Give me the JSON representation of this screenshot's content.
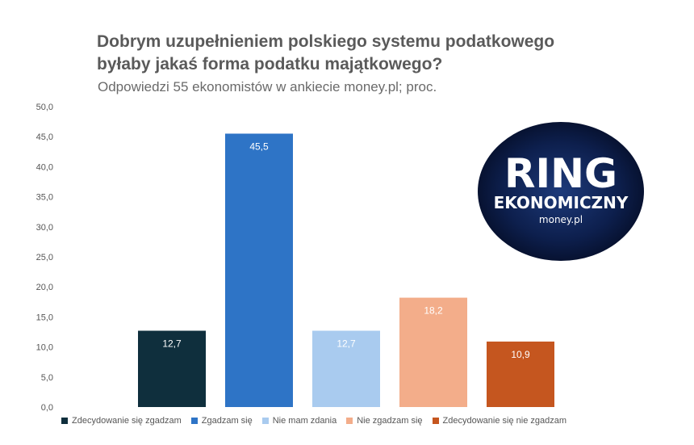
{
  "chart_data": {
    "type": "bar",
    "title_lines": [
      "Dobrym uzupełnieniem polskiego systemu podatkowego",
      "byłaby jakaś forma podatku majątkowego?"
    ],
    "subtitle": "Odpowiedzi 55 ekonomistów w ankiecie money.pl; proc.",
    "categories": [
      "Zdecydowanie się zgadzam",
      "Zgadzam się",
      "Nie mam zdania",
      "Nie zgadzam się",
      "Zdecydowanie się nie zgadzam"
    ],
    "values": [
      12.7,
      45.5,
      12.7,
      18.2,
      10.9
    ],
    "value_labels": [
      "12,7",
      "45,5",
      "12,7",
      "18,2",
      "10,9"
    ],
    "colors": [
      "#0f2f3d",
      "#2e74c6",
      "#a9cbef",
      "#f3ad8a",
      "#c5561f"
    ],
    "y_ticks": [
      "0,0",
      "5,0",
      "10,0",
      "15,0",
      "20,0",
      "25,0",
      "30,0",
      "35,0",
      "40,0",
      "45,0",
      "50,0"
    ],
    "ylim": [
      0,
      50
    ],
    "grid": false,
    "legend_position": "bottom"
  },
  "logo": {
    "line1": "RING",
    "line2": "EKONOMICZNY",
    "line3": "money.pl",
    "bg_color": "#0b1a3d"
  }
}
